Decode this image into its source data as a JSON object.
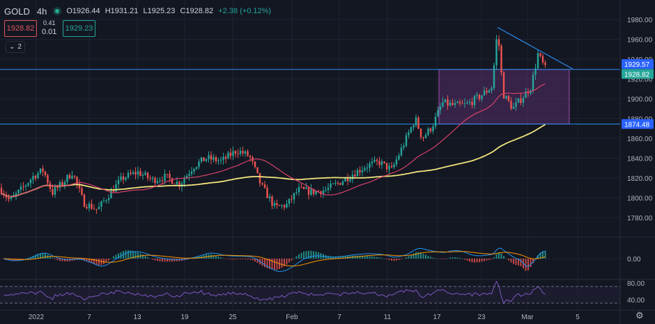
{
  "header": {
    "symbol": "GOLD",
    "timeframe": "4h",
    "open": "O1926.44",
    "high": "H1931.21",
    "low": "L1925.23",
    "close": "C1928.82",
    "change": "+2.38 (+0.12%)"
  },
  "trade": {
    "sell_price": "1928.82",
    "spread_top": "0.41",
    "spread_bottom": "0.01",
    "buy_price": "1929.23"
  },
  "indicators_toggle": {
    "count": "2"
  },
  "price_axis": {
    "ticks": [
      "1980.00",
      "1960.00",
      "1940.00",
      "1920.00",
      "1900.00",
      "1880.00",
      "1860.00",
      "1840.00",
      "1820.00",
      "1800.00",
      "1780.00"
    ],
    "label_upper_line": "1929.57",
    "label_current": "1928.82",
    "label_lower_line": "1874.48"
  },
  "macd_axis": {
    "ticks": [
      "0.00"
    ]
  },
  "rsi_axis": {
    "ticks": [
      "80.00",
      "40.00"
    ]
  },
  "time_axis": {
    "ticks": [
      "2022",
      "7",
      "13",
      "19",
      "25",
      "Feb",
      "7",
      "11",
      "17",
      "23",
      "Mar",
      "5"
    ]
  },
  "colors": {
    "background": "#131722",
    "up": "#26a69a",
    "down": "#ef5350",
    "ma_fast": "#d8406a",
    "ma_slow": "#f2e47d",
    "trendline": "#2c8ff4",
    "zone": "#7b3a8c",
    "rsi": "#7e57c2"
  }
}
